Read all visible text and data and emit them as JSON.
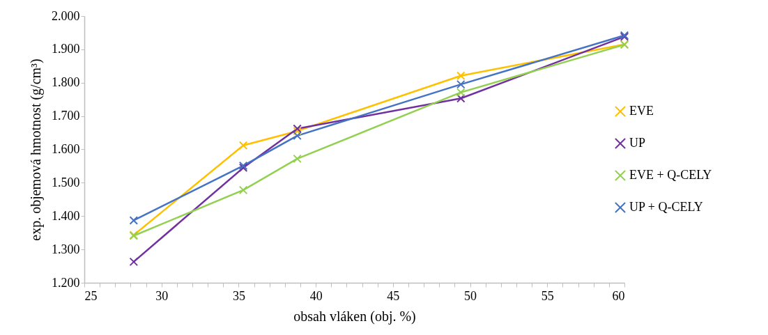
{
  "chart_data": {
    "type": "line",
    "xlabel": "obsah vláken (obj. %)",
    "ylabel": "exp. objemová hmotnost (g/cm³)",
    "x": [
      28.2,
      35.3,
      38.8,
      49.4,
      60
    ],
    "series": [
      {
        "name": "EVE",
        "color": "#ffc000",
        "values": [
          1.343,
          1.612,
          1.655,
          1.821,
          1.915
        ]
      },
      {
        "name": "UP",
        "color": "#7030a0",
        "values": [
          1.263,
          1.545,
          1.662,
          1.753,
          1.938
        ]
      },
      {
        "name": "EVE + Q-CELY",
        "color": "#92d050",
        "values": [
          1.341,
          1.478,
          1.572,
          1.771,
          1.914
        ]
      },
      {
        "name": "UP + Q-CELY",
        "color": "#4472c4",
        "values": [
          1.387,
          1.551,
          1.641,
          1.795,
          1.942
        ]
      }
    ],
    "xlim": [
      25,
      60
    ],
    "ylim": [
      1.2,
      2.0
    ],
    "xticks": [
      25,
      {
        "value": 26,
        "label": null
      },
      {
        "value": 27,
        "label": null
      },
      {
        "value": 28,
        "label": null
      },
      {
        "value": 29,
        "label": null
      },
      30,
      {
        "value": 31,
        "label": null
      },
      {
        "value": 32,
        "label": null
      },
      {
        "value": 33,
        "label": null
      },
      {
        "value": 34,
        "label": null
      },
      35,
      {
        "value": 36,
        "label": null
      },
      {
        "value": 37,
        "label": null
      },
      {
        "value": 38,
        "label": null
      },
      {
        "value": 39,
        "label": null
      },
      40,
      {
        "value": 41,
        "label": null
      },
      {
        "value": 42,
        "label": null
      },
      {
        "value": 43,
        "label": null
      },
      {
        "value": 44,
        "label": null
      },
      45,
      {
        "value": 46,
        "label": null
      },
      {
        "value": 47,
        "label": null
      },
      {
        "value": 48,
        "label": null
      },
      {
        "value": 49,
        "label": null
      },
      50,
      {
        "value": 51,
        "label": null
      },
      {
        "value": 52,
        "label": null
      },
      {
        "value": 53,
        "label": null
      },
      {
        "value": 54,
        "label": null
      },
      55,
      {
        "value": 56,
        "label": null
      },
      {
        "value": 57,
        "label": null
      },
      {
        "value": 58,
        "label": null
      },
      {
        "value": 59,
        "label": null
      },
      60
    ],
    "yticks": [
      {
        "value": 1.2,
        "label": "1.200"
      },
      {
        "value": 1.3,
        "label": "1.300"
      },
      {
        "value": 1.4,
        "label": "1.400"
      },
      {
        "value": 1.5,
        "label": "1.500"
      },
      {
        "value": 1.6,
        "label": "1.600"
      },
      {
        "value": 1.7,
        "label": "1.700"
      },
      {
        "value": 1.8,
        "label": "1.800"
      },
      {
        "value": 1.9,
        "label": "1.900"
      },
      {
        "value": 2.0,
        "label": "2.000"
      }
    ],
    "grid": false,
    "legend": "right",
    "marker": "cross",
    "line_style": "solid"
  }
}
